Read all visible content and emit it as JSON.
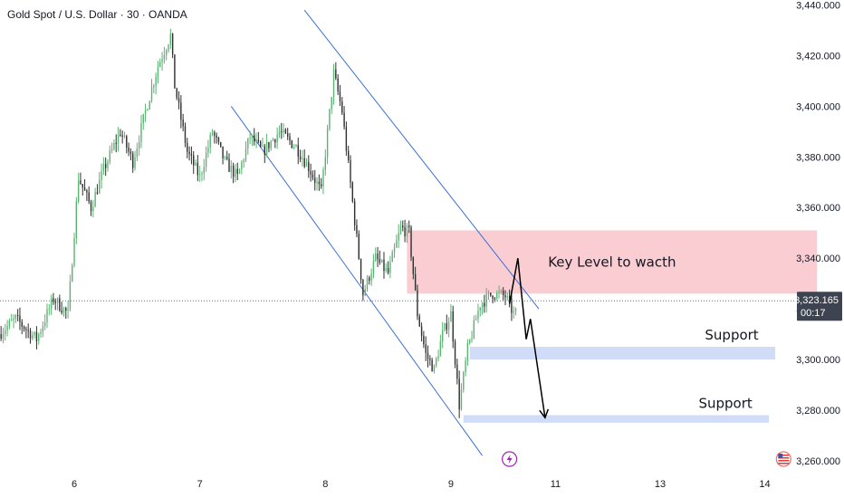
{
  "header": {
    "title": "Gold Spot / U.S. Dollar · 30 · OANDA"
  },
  "colors": {
    "up": "#26a69a",
    "up_body": "#5bb373",
    "down": "#2f2f2f",
    "channel": "#3b6fd6",
    "key_zone": "#f7b8be",
    "support_zone": "#c9d6f8",
    "price_badge": "#3d4350",
    "arrow": "#000000",
    "event_icon": "#9c27b0"
  },
  "chart_data": {
    "type": "candlestick",
    "title": "",
    "y_axis": {
      "min": 3256,
      "max": 3442,
      "ticks": [
        "3,260.000",
        "3,280.000",
        "3,300.000",
        "3,320.000",
        "3,340.000",
        "3,360.000",
        "3,380.000",
        "3,400.000",
        "3,420.000",
        "3,440.000"
      ],
      "tick_values": [
        3260,
        3280,
        3300,
        3320,
        3340,
        3360,
        3380,
        3400,
        3420,
        3440
      ],
      "current_price_label": "3,323.165",
      "countdown_label": "00:17",
      "current_price": 3323.165
    },
    "x_axis": {
      "tick_labels": [
        "6",
        "7",
        "8",
        "9",
        "11",
        "13",
        "14"
      ],
      "tick_positions_bars": [
        35,
        95,
        155,
        215,
        265,
        315,
        365
      ]
    },
    "bars_count": 380,
    "price_path": [
      [
        0,
        3310
      ],
      [
        8,
        3316
      ],
      [
        18,
        3308
      ],
      [
        26,
        3324
      ],
      [
        33,
        3318
      ],
      [
        38,
        3372
      ],
      [
        44,
        3360
      ],
      [
        50,
        3375
      ],
      [
        58,
        3390
      ],
      [
        64,
        3378
      ],
      [
        70,
        3398
      ],
      [
        76,
        3416
      ],
      [
        82,
        3428
      ],
      [
        84,
        3408
      ],
      [
        90,
        3382
      ],
      [
        96,
        3372
      ],
      [
        102,
        3390
      ],
      [
        108,
        3378
      ],
      [
        114,
        3372
      ],
      [
        120,
        3388
      ],
      [
        126,
        3382
      ],
      [
        134,
        3390
      ],
      [
        142,
        3384
      ],
      [
        148,
        3376
      ],
      [
        154,
        3366
      ],
      [
        160,
        3413
      ],
      [
        164,
        3398
      ],
      [
        170,
        3355
      ],
      [
        174,
        3326
      ],
      [
        180,
        3340
      ],
      [
        186,
        3334
      ],
      [
        192,
        3352
      ],
      [
        196,
        3350
      ],
      [
        200,
        3318
      ],
      [
        204,
        3302
      ],
      [
        208,
        3296
      ],
      [
        212,
        3310
      ],
      [
        216,
        3318
      ],
      [
        220,
        3282
      ],
      [
        224,
        3304
      ],
      [
        230,
        3322
      ],
      [
        236,
        3326
      ],
      [
        242,
        3325
      ],
      [
        246,
        3318
      ]
    ],
    "channel_lines": [
      {
        "name": "upper",
        "x1": 145,
        "y1": 3438,
        "x2": 257,
        "y2": 3320
      },
      {
        "name": "lower",
        "x1": 110,
        "y1": 3400,
        "x2": 230,
        "y2": 3262
      }
    ],
    "zones": [
      {
        "kind": "key",
        "label": "Key Level to wacth",
        "x1": 194,
        "x2": 390,
        "y1": 3326,
        "y2": 3351
      },
      {
        "kind": "support",
        "label": "Support",
        "x1": 224,
        "x2": 370,
        "y1": 3300,
        "y2": 3305
      },
      {
        "kind": "support",
        "label": "Support",
        "x1": 221,
        "x2": 367,
        "y1": 3275,
        "y2": 3278
      }
    ],
    "projection_arrow": [
      [
        243,
        3322
      ],
      [
        247,
        3340
      ],
      [
        251,
        3308
      ],
      [
        253,
        3316
      ],
      [
        260,
        3277
      ]
    ],
    "events": [
      {
        "icon": "lightning-icon",
        "bar": 243
      },
      {
        "icon": "us-flag-icon",
        "bar": 374
      }
    ],
    "grid": false
  }
}
